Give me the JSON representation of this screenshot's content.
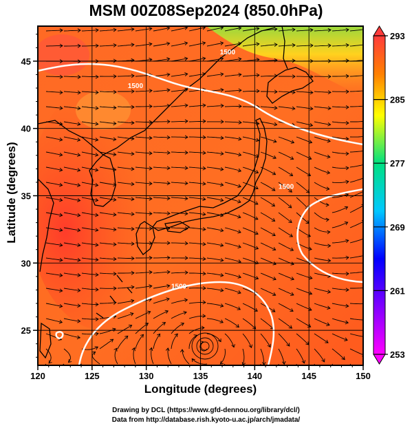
{
  "title": "MSM 00Z08Sep2024 (850.0hPa)",
  "x_axis": {
    "title": "Longitude (degrees)",
    "range": [
      120,
      150
    ],
    "ticks": [
      "120",
      "125",
      "130",
      "135",
      "140",
      "145",
      "150"
    ]
  },
  "y_axis": {
    "title": "Latitude  (degrees)",
    "range": [
      22.4,
      47.6
    ],
    "ticks": [
      "25",
      "30",
      "35",
      "40",
      "45"
    ]
  },
  "colorbar": {
    "min": 253,
    "max": 293,
    "labels": [
      "253",
      "261",
      "269",
      "277",
      "285",
      "293"
    ],
    "colors": [
      "#ff00ff",
      "#0000ff",
      "#00c8ff",
      "#00e080",
      "#ffff00",
      "#ff8000",
      "#ff3c3c"
    ]
  },
  "contours": [
    {
      "label": "1500",
      "lon": 142.9,
      "lat": 35.5
    },
    {
      "label": "1500",
      "lon": 133.0,
      "lat": 28.1
    },
    {
      "label": "1500",
      "lon": 129.0,
      "lat": 43.0
    },
    {
      "label": "1500",
      "lon": 137.5,
      "lat": 45.5
    }
  ],
  "credits": {
    "line1": "Drawing by DCL (https://www.gfd-dennou.org/library/dcl/)",
    "line2": "Data from http://database.rish.kyoto-u.ac.jp/arch/jmadata/"
  },
  "colors": {
    "warm_field": "#ff5a1e",
    "cool_field": "#aade3a",
    "streamline": "#000000",
    "contour": "#ffffff",
    "coastline": "#000000"
  }
}
